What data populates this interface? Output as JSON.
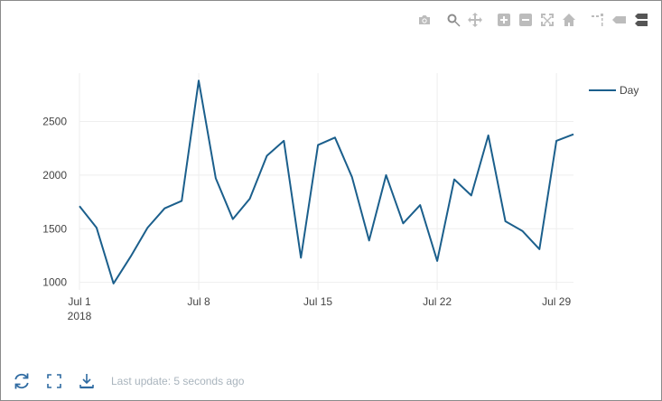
{
  "modebar": {
    "buttons": [
      {
        "name": "download-plot-icon",
        "group": 1
      },
      {
        "name": "zoom-icon",
        "group": 2,
        "active": true
      },
      {
        "name": "pan-icon",
        "group": 2
      },
      {
        "name": "zoom-in-icon",
        "group": 3
      },
      {
        "name": "zoom-out-icon",
        "group": 3
      },
      {
        "name": "autoscale-icon",
        "group": 3
      },
      {
        "name": "reset-axes-icon",
        "group": 3
      },
      {
        "name": "toggle-spike-lines-icon",
        "group": 4
      },
      {
        "name": "hover-closest-icon",
        "group": 4
      },
      {
        "name": "hover-compare-icon",
        "group": 4
      }
    ]
  },
  "footer": {
    "status": "Last update: 5 seconds ago",
    "icons": [
      "refresh-icon",
      "fullscreen-icon",
      "download-icon"
    ]
  },
  "colors": {
    "line": "#1b5f8c",
    "grid": "#eeeeee",
    "footer_icon": "#2e6aa1"
  },
  "chart_data": {
    "type": "line",
    "x": [
      "2018-07-01",
      "2018-07-02",
      "2018-07-03",
      "2018-07-04",
      "2018-07-05",
      "2018-07-06",
      "2018-07-07",
      "2018-07-08",
      "2018-07-09",
      "2018-07-10",
      "2018-07-11",
      "2018-07-12",
      "2018-07-13",
      "2018-07-14",
      "2018-07-15",
      "2018-07-16",
      "2018-07-17",
      "2018-07-18",
      "2018-07-19",
      "2018-07-20",
      "2018-07-21",
      "2018-07-22",
      "2018-07-23",
      "2018-07-24",
      "2018-07-25",
      "2018-07-26",
      "2018-07-27",
      "2018-07-28",
      "2018-07-29",
      "2018-07-30"
    ],
    "series": [
      {
        "name": "Day",
        "values": [
          1710,
          1510,
          990,
          1240,
          1510,
          1690,
          1760,
          2880,
          1970,
          1590,
          1780,
          2180,
          2320,
          1230,
          2280,
          2350,
          1980,
          1390,
          2000,
          1550,
          1720,
          1200,
          1960,
          1810,
          2370,
          1570,
          1480,
          1310,
          2320,
          2380
        ]
      }
    ],
    "x_ticks": [
      {
        "value": "2018-07-01",
        "label": "Jul 1",
        "sub": "2018"
      },
      {
        "value": "2018-07-08",
        "label": "Jul 8",
        "sub": ""
      },
      {
        "value": "2018-07-15",
        "label": "Jul 15",
        "sub": ""
      },
      {
        "value": "2018-07-22",
        "label": "Jul 22",
        "sub": ""
      },
      {
        "value": "2018-07-29",
        "label": "Jul 29",
        "sub": ""
      }
    ],
    "y_ticks": [
      1000,
      1500,
      2000,
      2500
    ],
    "xlim": [
      "2018-07-01",
      "2018-07-30"
    ],
    "ylim": [
      930,
      2950
    ],
    "grid": true,
    "legend": {
      "position": "top-right",
      "entries": [
        "Day"
      ]
    }
  }
}
